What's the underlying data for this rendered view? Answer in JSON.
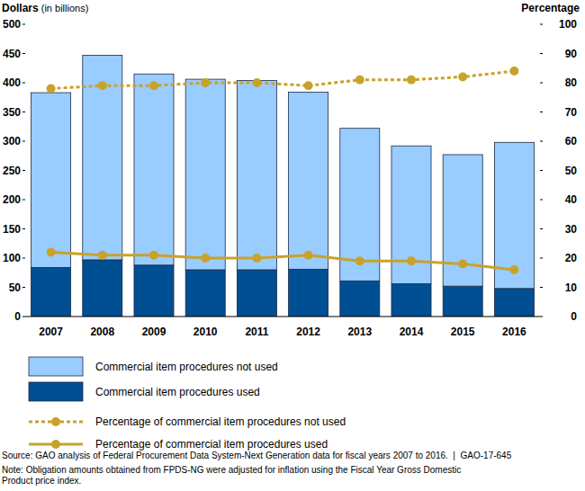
{
  "chart_data": {
    "type": "bar",
    "stacked": true,
    "y_label": "Dollars (in billions)",
    "y2_label": "Percentage",
    "categories": [
      "2007",
      "2008",
      "2009",
      "2010",
      "2011",
      "2012",
      "2013",
      "2014",
      "2015",
      "2016"
    ],
    "series": [
      {
        "name": "Commercial item procedures not used",
        "type": "bar",
        "color": "#99ccff",
        "values": [
          299,
          350,
          327,
          326,
          324,
          303,
          261,
          236,
          225,
          250
        ]
      },
      {
        "name": "Commercial item procedures used",
        "type": "bar",
        "color": "#004f93",
        "values": [
          84,
          97,
          88,
          80,
          80,
          81,
          61,
          56,
          52,
          48
        ]
      },
      {
        "name": "Percentage of commercial item procedures not used",
        "type": "line",
        "axis": "y2",
        "color": "#c9a22b",
        "line_style": "dotted",
        "marker": "circle",
        "values": [
          78,
          79,
          79,
          80,
          80,
          79,
          81,
          81,
          82,
          84
        ]
      },
      {
        "name": "Percentage of commercial item procedures used",
        "type": "line",
        "axis": "y2",
        "color": "#c9a22b",
        "line_style": "solid",
        "marker": "circle",
        "values": [
          22,
          21,
          21,
          20,
          20,
          21,
          19,
          19,
          18,
          16
        ]
      }
    ],
    "ylim": [
      0,
      500
    ],
    "yticks": [
      0,
      50,
      100,
      150,
      200,
      250,
      300,
      350,
      400,
      450,
      500
    ],
    "y2lim": [
      0,
      100
    ],
    "y2ticks": [
      0,
      10,
      20,
      30,
      40,
      50,
      60,
      70,
      80,
      90,
      100
    ],
    "grid": false,
    "legend": "bottom",
    "source": "Source: GAO analysis of Federal Procurement Data System-Next Generation data for fiscal years 2007 to 2016.  |  GAO-17-645",
    "notes": [
      "Note: Obligation amounts obtained from FPDS-NG were adjusted for inflation using the Fiscal Year Gross Domestic",
      "Product price index."
    ]
  }
}
